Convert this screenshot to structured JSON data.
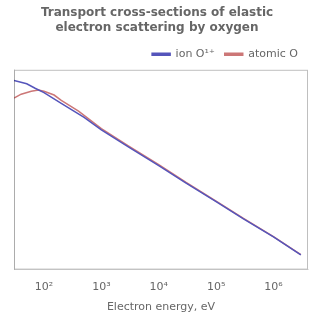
{
  "chart_data": {
    "type": "line",
    "title": "Transport cross-sections of elastic electron scattering by oxygen",
    "xlabel": "Electron energy, eV",
    "log": true,
    "xlim": [
      30,
      4000000
    ],
    "ylim": [
      3e-25,
      1e-18
    ],
    "xticks": [
      {
        "value": 100,
        "label": "10²"
      },
      {
        "value": 1000,
        "label": "10³"
      },
      {
        "value": 10000,
        "label": "10⁴"
      },
      {
        "value": 100000,
        "label": "10⁵"
      },
      {
        "value": 1000000,
        "label": "10⁶"
      }
    ],
    "tick_labels": "x",
    "grid": false,
    "legend": "upper right",
    "series": [
      {
        "name": "ion O¹⁺",
        "color": "#5555bb",
        "x": [
          30,
          50,
          70,
          100,
          200,
          500,
          1000,
          3000,
          10000,
          30000,
          100000,
          300000,
          1000000,
          3000000
        ],
        "values": [
          4.5e-19,
          3.5e-19,
          2.5e-19,
          1.8e-19,
          8e-20,
          2.8e-20,
          1.1e-20,
          3e-21,
          7.5e-22,
          2e-22,
          5e-23,
          1.35e-23,
          3.5e-24,
          9e-25
        ]
      },
      {
        "name": "atomic O",
        "color": "#cc7777",
        "x": [
          30,
          40,
          60,
          80,
          100,
          150,
          200,
          400,
          1000,
          3000,
          10000,
          30000,
          100000,
          300000,
          1000000,
          3000000
        ],
        "values": [
          1.2e-19,
          1.6e-19,
          2e-19,
          2.2e-19,
          2e-19,
          1.5e-19,
          1e-19,
          4.5e-20,
          1.2e-20,
          3.2e-21,
          8e-22,
          2.1e-22,
          5.2e-23,
          1.4e-23,
          3.6e-24,
          9.2e-25
        ]
      }
    ]
  }
}
